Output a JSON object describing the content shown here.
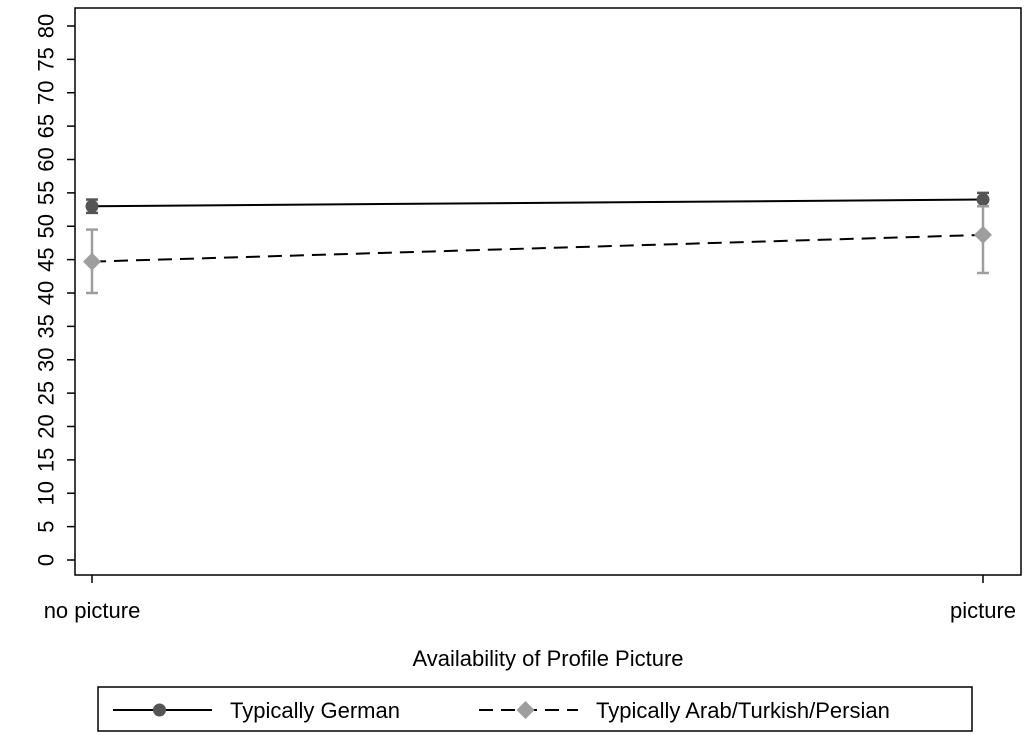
{
  "chart_data": {
    "type": "line",
    "title": "",
    "xlabel": "Availability of Profile Picture",
    "ylabel": "",
    "categories": [
      "no picture",
      "picture"
    ],
    "ylim": [
      0,
      80
    ],
    "yticks": [
      0,
      5,
      10,
      15,
      20,
      25,
      30,
      35,
      40,
      45,
      50,
      55,
      60,
      65,
      70,
      75,
      80
    ],
    "grid": false,
    "legend_position": "bottom",
    "series": [
      {
        "name": "Typically German",
        "values": [
          53,
          54
        ],
        "error_low": [
          52,
          53
        ],
        "error_high": [
          54,
          55
        ],
        "line_style": "solid",
        "marker": "circle",
        "color": "#000000",
        "marker_color": "#555555"
      },
      {
        "name": "Typically Arab/Turkish/Persian",
        "values": [
          44.7,
          48.7
        ],
        "error_low": [
          40,
          43
        ],
        "error_high": [
          49.5,
          53
        ],
        "line_style": "dashed",
        "marker": "diamond",
        "color": "#000000",
        "marker_color": "#9e9e9e"
      }
    ]
  }
}
